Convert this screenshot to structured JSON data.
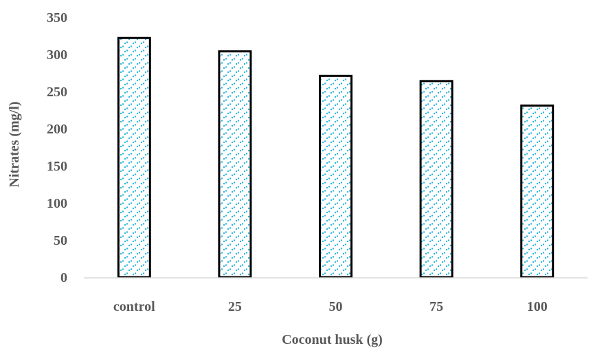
{
  "chart_data": {
    "type": "bar",
    "categories": [
      "control",
      "25",
      "50",
      "75",
      "100"
    ],
    "values": [
      322,
      304,
      271,
      264,
      231
    ],
    "title": "",
    "xlabel": "Coconut husk (g)",
    "ylabel": "Nitrates (mg/l)",
    "ylim": [
      0,
      350
    ],
    "yticks": [
      "0",
      "50",
      "100",
      "150",
      "200",
      "250",
      "300",
      "350"
    ],
    "grid": false,
    "legend": "none",
    "colors": {
      "pattern": "#29b6e0",
      "bar_outline": "#000000",
      "bar_fill": "#ffffff",
      "axis_line": "#d9d9d9",
      "text": "#595959"
    }
  }
}
